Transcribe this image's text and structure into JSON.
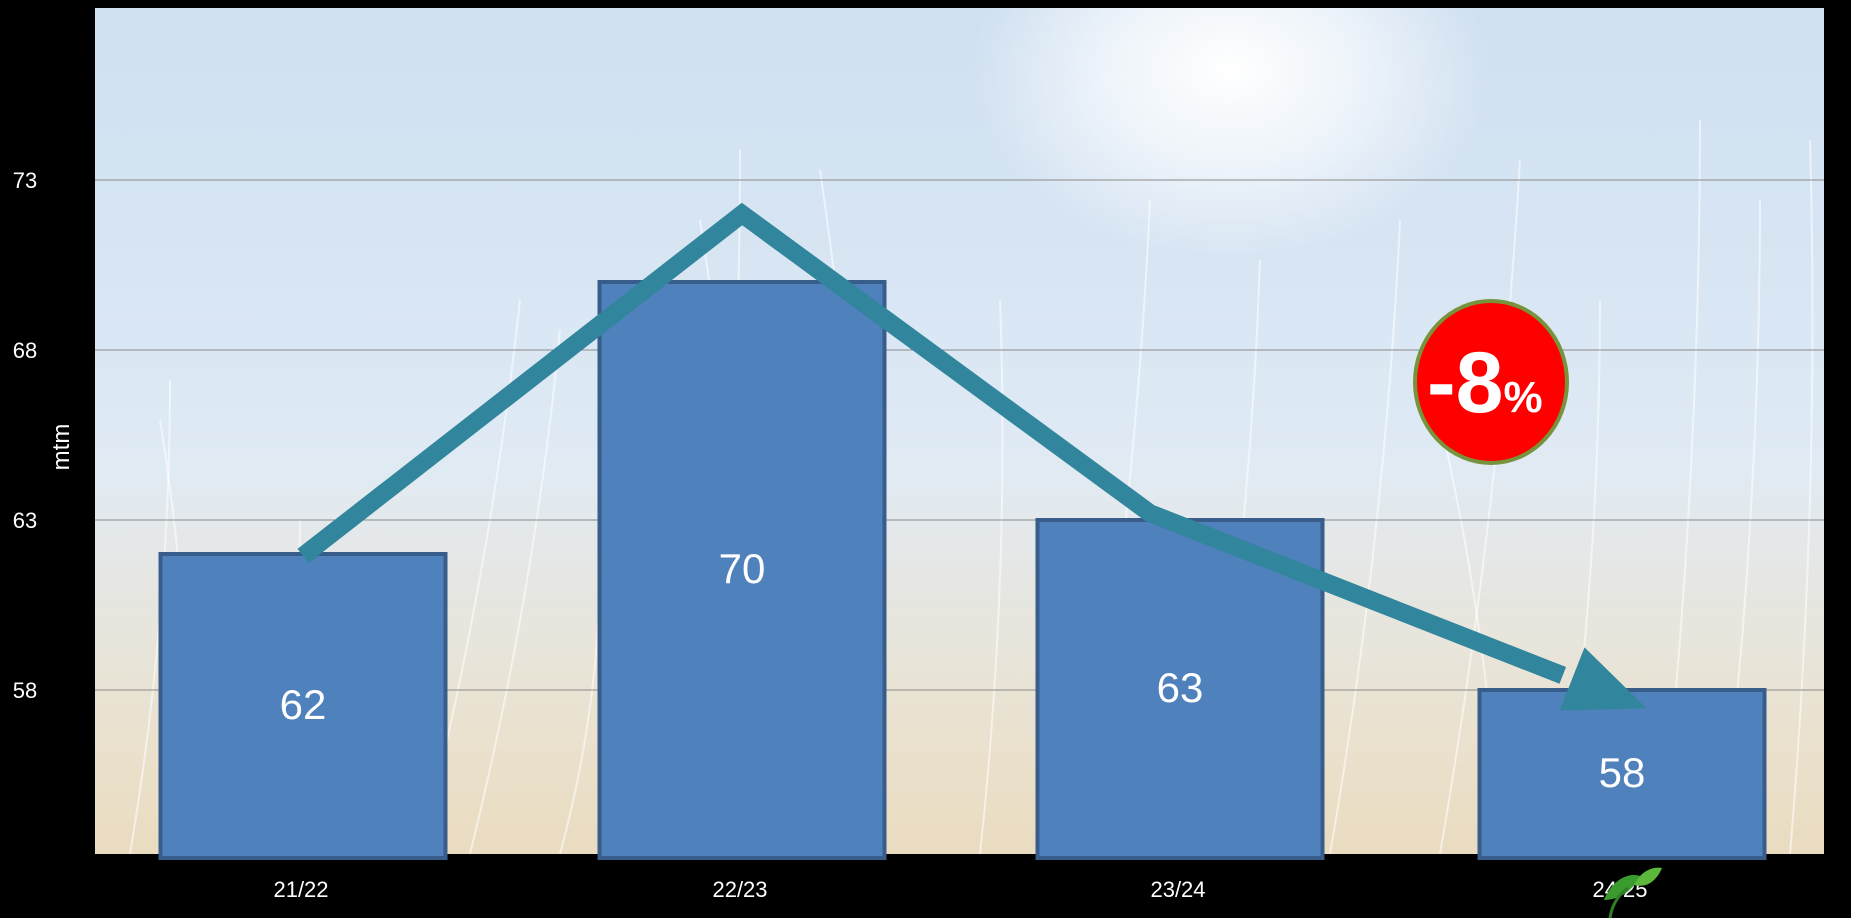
{
  "chart_data": {
    "type": "bar",
    "categories": [
      "21/22",
      "22/23",
      "23/24",
      "24/25"
    ],
    "values": [
      62,
      70,
      63,
      58
    ],
    "data_labels": [
      "62",
      "70",
      "63",
      "58"
    ],
    "ylabel": "mtm",
    "yticks": [
      "73",
      "68",
      "63",
      "58"
    ],
    "ytick_values": [
      73,
      68,
      63,
      58
    ],
    "ylim": [
      53.2,
      78
    ],
    "grid": true,
    "trend_line": {
      "values": [
        62,
        72,
        63.2,
        58
      ],
      "arrow_end": true
    },
    "annotation": {
      "value": "-8",
      "unit": "%"
    },
    "colors": {
      "bar_fill": "#4f81bd",
      "bar_stroke": "#385d8a",
      "trend_line": "#31859c",
      "badge_fill": "#ff0000",
      "badge_stroke": "#77933c",
      "background": "#000000"
    }
  }
}
